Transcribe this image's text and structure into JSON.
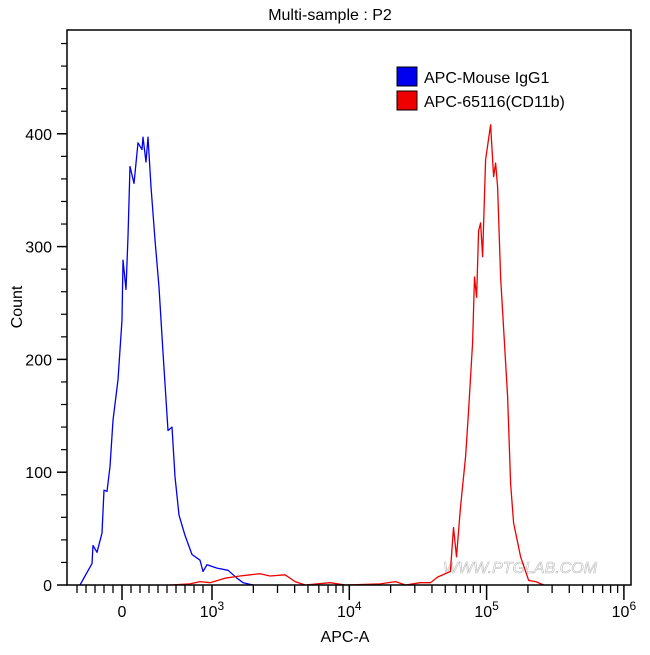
{
  "chart_data": {
    "type": "line",
    "title": "Multi-sample : P2",
    "xlabel": "APC-A",
    "ylabel": "Count",
    "x_scale": "biexponential",
    "xlim": [
      -600,
      1000000
    ],
    "ylim": [
      0,
      492
    ],
    "x_ticks": [
      {
        "value": 0,
        "label": "0"
      },
      {
        "value": 1000,
        "label": "10",
        "exp": "3"
      },
      {
        "value": 10000,
        "label": "10",
        "exp": "4"
      },
      {
        "value": 100000,
        "label": "10",
        "exp": "5"
      },
      {
        "value": 1000000,
        "label": "10",
        "exp": "6"
      }
    ],
    "y_ticks": [
      0,
      100,
      200,
      300,
      400
    ],
    "grid": false,
    "legend_position": "top-right",
    "watermark": "WWW.PTGLAB.COM",
    "series": [
      {
        "name": "APC-Mouse IgG1",
        "color": "#0000ee",
        "x": [
          -467,
          -333,
          -322,
          -278,
          -222,
          -200,
          -167,
          -133,
          -100,
          -44,
          0,
          11,
          44,
          67,
          89,
          133,
          178,
          222,
          233,
          267,
          289,
          322,
          367,
          411,
          456,
          511,
          556,
          589,
          633,
          700,
          778,
          867,
          900,
          944,
          1087,
          1309,
          1521,
          1684,
          1992
        ],
        "y": [
          0,
          19,
          35,
          29,
          46,
          84,
          83,
          105,
          146,
          182,
          235,
          288,
          262,
          309,
          371,
          356,
          392,
          386,
          397,
          375,
          397,
          353,
          306,
          264,
          206,
          137,
          140,
          96,
          62,
          44,
          27,
          22,
          12,
          18,
          15,
          13,
          6,
          2,
          0
        ]
      },
      {
        "name": "APC-65116(CD11b)",
        "color": "#ee0000",
        "x": [
          533,
          756,
          867,
          978,
          1244,
          1600,
          1893,
          2240,
          2650,
          3410,
          4030,
          4770,
          7250,
          9350,
          16800,
          21700,
          25700,
          32900,
          39000,
          43900,
          54500,
          57400,
          60400,
          64600,
          70300,
          73900,
          79100,
          81700,
          84500,
          87400,
          90400,
          93500,
          98400,
          106900,
          112500,
          116300,
          120300,
          126500,
          142300,
          149600,
          157300,
          177000,
          202600,
          227900,
          260800
        ],
        "y": [
          0,
          1,
          3,
          2,
          6,
          8,
          9,
          10,
          8,
          9,
          3,
          0,
          2,
          0,
          1,
          3,
          0,
          2,
          2,
          7,
          12,
          51,
          25,
          69,
          114,
          155,
          215,
          273,
          255,
          314,
          321,
          291,
          377,
          408,
          362,
          374,
          353,
          273,
          167,
          90,
          55,
          25,
          4,
          3,
          0
        ]
      }
    ]
  }
}
